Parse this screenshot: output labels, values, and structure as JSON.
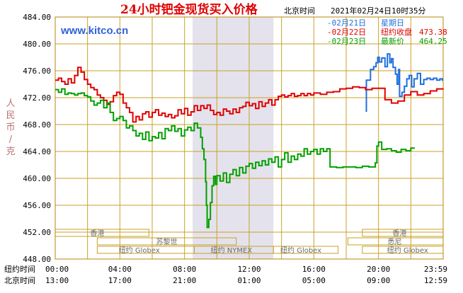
{
  "header": {
    "title": "24小时钯金现货买入价格",
    "timezone_label": "北京时间",
    "timestamp": "2021年02月24日10时35分",
    "site": "www.kitco.cn"
  },
  "legend": [
    {
      "date": "-02月21日",
      "label": "星期日",
      "value": "",
      "color": "#1f6fe0"
    },
    {
      "date": "-02月22日",
      "label": "纽约收盘",
      "value": "473.38",
      "color": "#e00000"
    },
    {
      "date": "-02月23日",
      "label": "最新价",
      "value": "464.25",
      "color": "#00a000"
    }
  ],
  "yaxis": {
    "label": "人民币/克",
    "ticks": [
      "484.00",
      "480.00",
      "476.00",
      "472.00",
      "468.00",
      "464.00",
      "460.00",
      "456.00",
      "452.00",
      "448.00"
    ]
  },
  "xaxis": {
    "row1_label": "纽约时间",
    "row2_label": "北京时间",
    "row1_ticks": [
      "00:00",
      "04:00",
      "08:00",
      "12:00",
      "16:00",
      "20:00",
      "23:59"
    ],
    "row2_ticks": [
      "13:00",
      "17:00",
      "21:00",
      "01:00",
      "05:00",
      "09:00",
      "12:59"
    ]
  },
  "markets": [
    {
      "name": "香港"
    },
    {
      "name": "苏黎世"
    },
    {
      "name": "纽约 Globex"
    },
    {
      "name": "纽约 NYMEX"
    },
    {
      "name": "纽约 Globex"
    },
    {
      "name": "悉尼"
    },
    {
      "name": "香港"
    },
    {
      "name": "纽约 Globex"
    }
  ],
  "chart_data": {
    "type": "line",
    "x_unit": "New York time, hours 0-24",
    "ylim": [
      448,
      484
    ],
    "y_ticks": [
      484,
      480,
      476,
      472,
      468,
      464,
      460,
      456,
      452,
      448
    ],
    "shaded_range_hours": [
      8.5,
      13.5
    ],
    "grid": true,
    "series": [
      {
        "name": "02月21日",
        "color": "#1f6fe0",
        "x": [
          19.2,
          19.25,
          19.5,
          19.7,
          19.85,
          19.95,
          20.05,
          20.2,
          20.4,
          20.55,
          20.7,
          20.8,
          20.9,
          21.05,
          21.15,
          21.25,
          21.3,
          21.45,
          21.6,
          21.75,
          21.9,
          22.05,
          22.2,
          22.4,
          22.6,
          22.8,
          23.0,
          23.2,
          23.4,
          23.6,
          23.8,
          23.95
        ],
        "y": [
          470.0,
          474.6,
          476.2,
          476.6,
          477.2,
          478.0,
          477.3,
          477.9,
          476.6,
          478.5,
          477.2,
          477.8,
          476.5,
          475.5,
          474.0,
          476.2,
          472.2,
          472.8,
          473.7,
          474.8,
          475.3,
          473.6,
          474.8,
          475.6,
          474.0,
          474.7,
          474.9,
          474.7,
          474.9,
          474.6,
          474.8,
          474.5
        ]
      },
      {
        "name": "02月22日",
        "color": "#e00000",
        "x": [
          0.0,
          0.2,
          0.4,
          0.6,
          0.8,
          1.0,
          1.2,
          1.4,
          1.6,
          1.8,
          2.0,
          2.2,
          2.4,
          2.6,
          2.8,
          3.0,
          3.2,
          3.4,
          3.6,
          3.8,
          4.0,
          4.2,
          4.4,
          4.6,
          4.8,
          5.0,
          5.2,
          5.4,
          5.6,
          5.8,
          6.0,
          6.2,
          6.4,
          6.6,
          6.8,
          7.0,
          7.2,
          7.4,
          7.6,
          7.8,
          8.0,
          8.2,
          8.4,
          8.6,
          8.8,
          9.0,
          9.2,
          9.4,
          9.6,
          9.8,
          10.0,
          10.2,
          10.4,
          10.6,
          10.8,
          11.0,
          11.2,
          11.4,
          11.6,
          11.8,
          12.0,
          12.2,
          12.4,
          12.6,
          12.8,
          13.0,
          13.2,
          13.4,
          13.6,
          13.8,
          14.0,
          14.2,
          14.4,
          14.6,
          14.8,
          15.0,
          15.2,
          15.4,
          15.6,
          15.8,
          16.0,
          16.4,
          16.8,
          17.2,
          17.6,
          18.0,
          18.4,
          18.8,
          19.2,
          19.6,
          20.0,
          20.4,
          20.8,
          21.2,
          21.6,
          22.0,
          22.4,
          22.8,
          23.2,
          23.6,
          23.99
        ],
        "y": [
          474.6,
          474.9,
          474.4,
          474.0,
          474.8,
          474.2,
          475.3,
          476.5,
          475.8,
          474.7,
          474.0,
          473.5,
          473.2,
          472.4,
          472.0,
          471.6,
          471.0,
          471.4,
          472.3,
          472.8,
          472.5,
          471.2,
          470.5,
          469.8,
          468.4,
          469.2,
          468.7,
          469.6,
          469.9,
          469.1,
          469.8,
          470.2,
          469.4,
          469.7,
          469.2,
          469.5,
          469.0,
          469.3,
          470.2,
          469.6,
          470.4,
          469.4,
          469.9,
          470.8,
          470.1,
          470.8,
          470.4,
          470.9,
          470.1,
          469.5,
          469.8,
          469.4,
          470.3,
          470.0,
          469.6,
          470.3,
          469.8,
          470.5,
          470.7,
          471.3,
          470.8,
          471.1,
          470.4,
          471.4,
          470.7,
          471.2,
          471.7,
          470.9,
          471.7,
          472.2,
          472.4,
          472.1,
          472.3,
          472.6,
          472.2,
          472.3,
          472.6,
          472.3,
          472.6,
          472.4,
          472.7,
          472.5,
          472.8,
          472.9,
          473.3,
          473.4,
          473.6,
          473.5,
          473.2,
          473.4,
          473.4,
          471.7,
          471.2,
          471.5,
          472.4,
          472.9,
          472.4,
          472.6,
          473.0,
          473.3,
          473.4
        ]
      },
      {
        "name": "02月23日",
        "color": "#00a000",
        "x": [
          0.0,
          0.2,
          0.4,
          0.6,
          0.8,
          1.0,
          1.2,
          1.4,
          1.6,
          1.8,
          2.0,
          2.2,
          2.4,
          2.6,
          2.8,
          3.0,
          3.2,
          3.4,
          3.6,
          3.8,
          4.0,
          4.2,
          4.4,
          4.6,
          4.8,
          5.0,
          5.2,
          5.4,
          5.6,
          5.8,
          6.0,
          6.2,
          6.4,
          6.6,
          6.8,
          7.0,
          7.2,
          7.4,
          7.6,
          7.8,
          8.0,
          8.2,
          8.4,
          8.6,
          8.8,
          9.0,
          9.1,
          9.2,
          9.3,
          9.35,
          9.4,
          9.5,
          9.6,
          9.7,
          9.8,
          9.9,
          10.0,
          10.2,
          10.4,
          10.6,
          10.8,
          11.0,
          11.2,
          11.4,
          11.6,
          11.8,
          12.0,
          12.2,
          12.4,
          12.6,
          12.8,
          13.0,
          13.2,
          13.4,
          13.6,
          13.8,
          14.0,
          14.2,
          14.4,
          14.6,
          14.8,
          15.0,
          15.2,
          15.4,
          15.6,
          15.8,
          16.0,
          16.2,
          16.4,
          16.6,
          16.8,
          17.0,
          17.4,
          17.8,
          18.2,
          18.6,
          19.0,
          19.4,
          19.8,
          19.9,
          20.0,
          20.2,
          20.5,
          20.8,
          21.1,
          21.4,
          21.7,
          22.0,
          22.2
        ],
        "y": [
          473.2,
          472.8,
          473.3,
          472.5,
          472.7,
          472.6,
          472.4,
          472.6,
          472.7,
          472.3,
          472.1,
          471.5,
          470.9,
          471.2,
          471.6,
          470.5,
          471.2,
          469.8,
          468.6,
          468.9,
          469.2,
          468.6,
          467.5,
          467.8,
          467.1,
          466.3,
          466.7,
          465.8,
          466.9,
          465.6,
          466.2,
          466.0,
          466.8,
          465.9,
          467.4,
          467.1,
          467.8,
          467.0,
          467.4,
          466.3,
          467.2,
          467.6,
          467.1,
          468.2,
          467.5,
          466.1,
          464.4,
          462.8,
          459.5,
          456.0,
          452.7,
          453.9,
          456.4,
          458.9,
          460.3,
          459.1,
          460.4,
          459.6,
          460.8,
          459.4,
          460.6,
          461.3,
          460.4,
          461.6,
          460.8,
          461.8,
          462.2,
          461.5,
          462.4,
          461.9,
          462.6,
          462.0,
          462.9,
          462.4,
          463.2,
          461.7,
          462.8,
          463.8,
          462.4,
          463.3,
          462.8,
          463.6,
          463.3,
          464.4,
          463.6,
          464.0,
          464.3,
          463.6,
          464.4,
          464.0,
          464.4,
          461.7,
          461.6,
          461.7,
          461.7,
          461.6,
          461.8,
          461.7,
          462.3,
          464.8,
          465.4,
          464.3,
          464.4,
          464.1,
          463.9,
          464.3,
          464.1,
          464.5,
          464.4
        ]
      }
    ]
  }
}
